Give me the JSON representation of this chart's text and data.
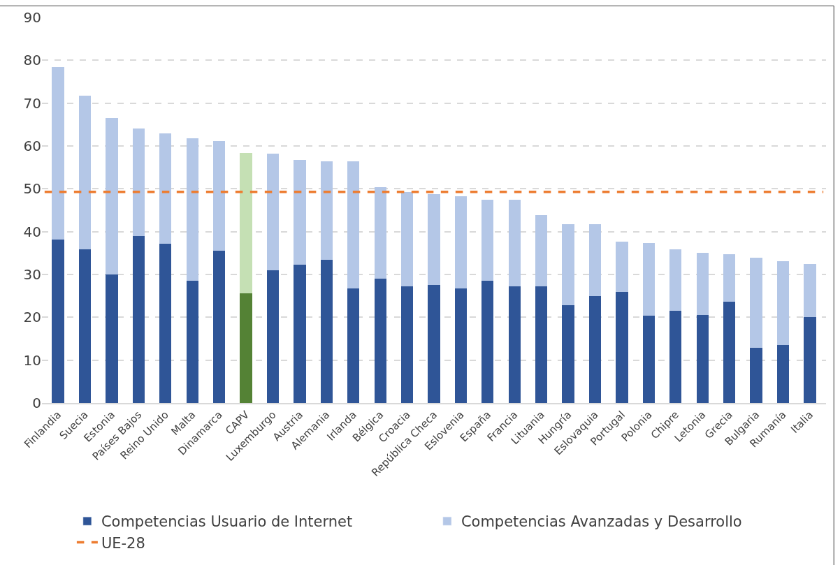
{
  "chart_data": {
    "type": "bar",
    "stacked": true,
    "categories": [
      "Finlandia",
      "Suecia",
      "Estonia",
      "Países Bajos",
      "Reino Unido",
      "Malta",
      "Dinamarca",
      "CAPV",
      "Luxemburgo",
      "Austria",
      "Alemania",
      "Irlanda",
      "Bélgica",
      "Croacia",
      "República Checa",
      "Eslovenia",
      "España",
      "Francia",
      "Lituania",
      "Hungría",
      "Eslovaquia",
      "Portugal",
      "Polonia",
      "Chipre",
      "Letonia",
      "Grecia",
      "Bulgaria",
      "Rumanía",
      "Italia"
    ],
    "series": [
      {
        "name": "Competencias Usuario de Internet",
        "color": "#2f5597",
        "colors": [
          "#2f5597",
          "#2f5597",
          "#2f5597",
          "#2f5597",
          "#2f5597",
          "#2f5597",
          "#2f5597",
          "#548235",
          "#2f5597",
          "#2f5597",
          "#2f5597",
          "#2f5597",
          "#2f5597",
          "#2f5597",
          "#2f5597",
          "#2f5597",
          "#2f5597",
          "#2f5597",
          "#2f5597",
          "#2f5597",
          "#2f5597",
          "#2f5597",
          "#2f5597",
          "#2f5597",
          "#2f5597",
          "#2f5597",
          "#2f5597",
          "#2f5597",
          "#2f5597"
        ],
        "values": [
          38.2,
          35.9,
          30.0,
          39.0,
          37.2,
          28.6,
          35.6,
          25.6,
          31.0,
          32.3,
          33.5,
          26.7,
          29.1,
          27.2,
          27.5,
          26.8,
          28.5,
          27.3,
          27.2,
          22.9,
          25.0,
          25.9,
          20.4,
          21.6,
          20.6,
          23.6,
          12.8,
          13.6,
          20.0
        ]
      },
      {
        "name": "Competencias Avanzadas y Desarrollo",
        "color": "#b4c7e7",
        "colors": [
          "#b4c7e7",
          "#b4c7e7",
          "#b4c7e7",
          "#b4c7e7",
          "#b4c7e7",
          "#b4c7e7",
          "#b4c7e7",
          "#c5e0b4",
          "#b4c7e7",
          "#b4c7e7",
          "#b4c7e7",
          "#b4c7e7",
          "#b4c7e7",
          "#b4c7e7",
          "#b4c7e7",
          "#b4c7e7",
          "#b4c7e7",
          "#b4c7e7",
          "#b4c7e7",
          "#b4c7e7",
          "#b4c7e7",
          "#b4c7e7",
          "#b4c7e7",
          "#b4c7e7",
          "#b4c7e7",
          "#b4c7e7",
          "#b4c7e7",
          "#b4c7e7",
          "#b4c7e7"
        ],
        "values": [
          40.2,
          35.8,
          36.6,
          25.1,
          25.8,
          33.2,
          25.6,
          32.7,
          27.2,
          24.5,
          22.9,
          29.7,
          21.3,
          22.0,
          21.2,
          21.5,
          19.0,
          20.1,
          16.6,
          18.9,
          16.8,
          11.8,
          16.9,
          14.2,
          14.4,
          11.1,
          21.1,
          19.5,
          12.4
        ]
      }
    ],
    "ref_lines": [
      {
        "axis": "y",
        "value": 49.3,
        "label": "UE-28",
        "color": "#ed7d31",
        "line_style": "dashed"
      }
    ],
    "ylim": [
      0,
      90
    ],
    "yticks": [
      0,
      10,
      20,
      30,
      40,
      50,
      60,
      70,
      80,
      90
    ],
    "grid": "y",
    "legend": "bottom"
  }
}
